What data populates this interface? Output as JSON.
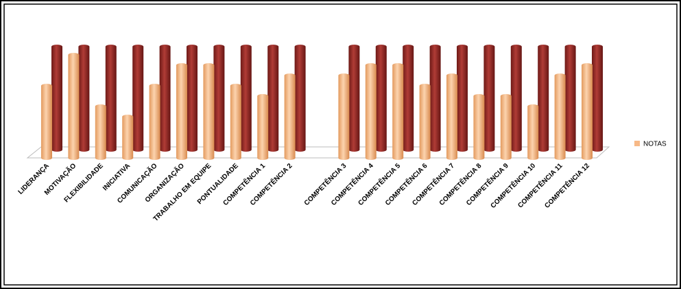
{
  "chart_data": {
    "type": "bar3d",
    "categories": [
      "LIDERANÇA",
      "MOTIVAÇÃO",
      "FLEXIBILIDADE",
      "INICIATIVA",
      "COMUNICAÇÃO",
      "ORGANIZAÇÃO",
      "TRABALHO EM EQUIPE",
      "PONTUALIDADE",
      "COMPETÊNCIA 1",
      "COMPETÊNCIA 2",
      null,
      "COMPETÊNCIA 3",
      "COMPETÊNCIA 4",
      "COMPETÊNCIA 5",
      "COMPETÊNCIA 6",
      "COMPETÊNCIA 7",
      "COMPETÊNCIA 8",
      "COMPETÊNCIA 9",
      "COMPETÊNCIA 10",
      "COMPETÊNCIA 11",
      "COMPETÊNCIA 12"
    ],
    "series": [
      {
        "name": "NOTAS",
        "color": "#f7b987",
        "values": [
          7,
          10,
          5,
          4,
          7,
          9,
          9,
          7,
          6,
          8,
          null,
          8,
          9,
          9,
          7,
          8,
          6,
          6,
          5,
          8,
          9
        ]
      },
      {
        "color": "#8e2a26",
        "values": [
          10,
          10,
          10,
          10,
          10,
          10,
          10,
          10,
          10,
          10,
          null,
          10,
          10,
          10,
          10,
          10,
          10,
          10,
          10,
          10,
          10
        ]
      }
    ],
    "ylim": [
      0,
      10
    ]
  }
}
